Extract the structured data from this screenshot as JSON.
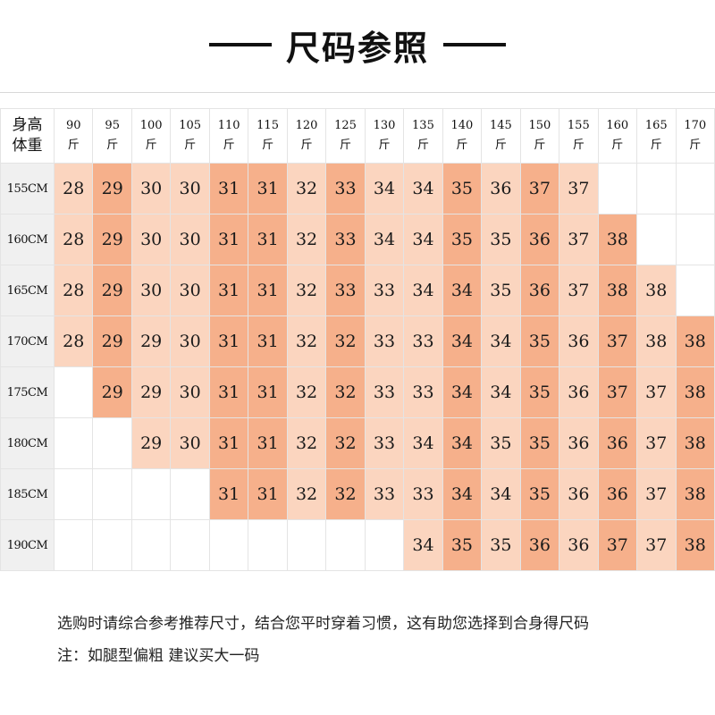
{
  "title": "尺码参照",
  "corner_label": [
    "身高",
    "体重"
  ],
  "weights": [
    [
      "90",
      "斤"
    ],
    [
      "95",
      "斤"
    ],
    [
      "100",
      "斤"
    ],
    [
      "105",
      "斤"
    ],
    [
      "110",
      "斤"
    ],
    [
      "115",
      "斤"
    ],
    [
      "120",
      "斤"
    ],
    [
      "125",
      "斤"
    ],
    [
      "130",
      "斤"
    ],
    [
      "135",
      "斤"
    ],
    [
      "140",
      "斤"
    ],
    [
      "145",
      "斤"
    ],
    [
      "150",
      "斤"
    ],
    [
      "155",
      "斤"
    ],
    [
      "160",
      "斤"
    ],
    [
      "165",
      "斤"
    ],
    [
      "170",
      "斤"
    ]
  ],
  "rows": [
    {
      "height": "155CM",
      "cells": [
        "28",
        "29",
        "30",
        "30",
        "31",
        "31",
        "32",
        "33",
        "34",
        "34",
        "35",
        "36",
        "37",
        "37",
        "",
        "",
        ""
      ]
    },
    {
      "height": "160CM",
      "cells": [
        "28",
        "29",
        "30",
        "30",
        "31",
        "31",
        "32",
        "33",
        "34",
        "34",
        "35",
        "35",
        "36",
        "37",
        "38",
        "",
        ""
      ]
    },
    {
      "height": "165CM",
      "cells": [
        "28",
        "29",
        "30",
        "30",
        "31",
        "31",
        "32",
        "33",
        "33",
        "34",
        "34",
        "35",
        "36",
        "37",
        "38",
        "38",
        ""
      ]
    },
    {
      "height": "170CM",
      "cells": [
        "28",
        "29",
        "29",
        "30",
        "31",
        "31",
        "32",
        "32",
        "33",
        "33",
        "34",
        "34",
        "35",
        "36",
        "37",
        "38",
        "38"
      ]
    },
    {
      "height": "175CM",
      "cells": [
        "",
        "29",
        "29",
        "30",
        "31",
        "31",
        "32",
        "32",
        "33",
        "33",
        "34",
        "34",
        "35",
        "36",
        "37",
        "37",
        "38"
      ]
    },
    {
      "height": "180CM",
      "cells": [
        "",
        "",
        "29",
        "30",
        "31",
        "31",
        "32",
        "32",
        "33",
        "34",
        "34",
        "35",
        "35",
        "36",
        "36",
        "37",
        "38"
      ]
    },
    {
      "height": "185CM",
      "cells": [
        "",
        "",
        "",
        "",
        "31",
        "31",
        "32",
        "32",
        "33",
        "33",
        "34",
        "34",
        "35",
        "36",
        "36",
        "37",
        "38"
      ]
    },
    {
      "height": "190CM",
      "cells": [
        "",
        "",
        "",
        "",
        "",
        "",
        "",
        "",
        "",
        "34",
        "35",
        "35",
        "36",
        "36",
        "37",
        "37",
        "38"
      ]
    }
  ],
  "cell_colors": {
    "light": "#fbd5bf",
    "dark": "#f6b08b",
    "empty": "#ffffff",
    "label_bg": "#f0f0f0"
  },
  "notes": [
    "选购时请综合参考推荐尺寸，结合您平时穿着习惯，这有助您选择到合身得尺码",
    "注：如腿型偏粗 建议买大一码"
  ]
}
